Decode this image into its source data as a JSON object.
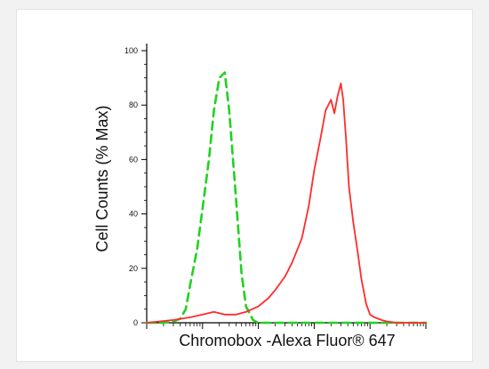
{
  "chart_data": {
    "type": "line",
    "title": "",
    "xlabel": "Chromobox -Alexa Fluor® 647",
    "ylabel": "Cell Counts (% Max)",
    "x_scale": "log",
    "xlim": [
      1,
      100000
    ],
    "ylim": [
      0,
      100
    ],
    "y_ticks": [
      0,
      20,
      40,
      60,
      80,
      100
    ],
    "grid": false,
    "series": [
      {
        "color": "#1fd21f",
        "style": "dashed",
        "x": [
          1,
          2,
          3,
          4,
          5,
          6,
          8,
          10,
          13,
          16,
          20,
          25,
          30,
          40,
          50,
          60,
          80,
          100,
          200,
          1000,
          100000
        ],
        "y": [
          0,
          0,
          0.5,
          1.5,
          5,
          14,
          27,
          42,
          60,
          78,
          90,
          92,
          78,
          45,
          18,
          6,
          1,
          0,
          0,
          0,
          0
        ]
      },
      {
        "color": "#ff2b2b",
        "style": "solid",
        "x": [
          1,
          3,
          6,
          10,
          16,
          25,
          40,
          60,
          100,
          150,
          200,
          300,
          400,
          600,
          800,
          1000,
          1300,
          1600,
          2000,
          2300,
          2600,
          3000,
          3300,
          3700,
          4200,
          5000,
          6000,
          7000,
          8500,
          10000,
          12000,
          16000,
          20000,
          30000,
          50000,
          100000
        ],
        "y": [
          0,
          1,
          2,
          3,
          4,
          3,
          3,
          4,
          6,
          9,
          12,
          17,
          22,
          31,
          43,
          56,
          68,
          78,
          82,
          77,
          83,
          88,
          82,
          68,
          50,
          37,
          26,
          16,
          7,
          3,
          2,
          1,
          0.5,
          0,
          0,
          0
        ]
      }
    ]
  }
}
